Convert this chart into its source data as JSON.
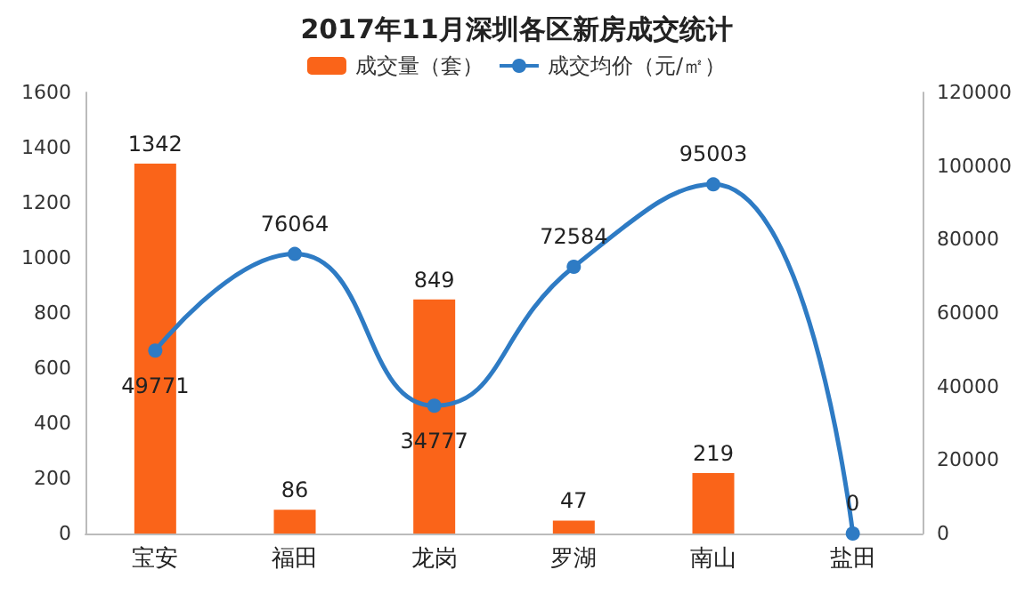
{
  "chart_data": {
    "type": "bar",
    "title": "2017年11月深圳各区新房成交统计",
    "categories": [
      "宝安",
      "福田",
      "龙岗",
      "罗湖",
      "南山",
      "盐田"
    ],
    "series": [
      {
        "name": "成交量（套）",
        "color": "#fa6419",
        "values": [
          1342,
          86,
          849,
          47,
          219,
          null
        ]
      },
      {
        "name": "成交均价（元/㎡）",
        "type": "line",
        "axis": "y2",
        "color": "#2e7bc4",
        "values": [
          49771,
          76064,
          34777,
          72584,
          95003,
          0
        ],
        "marker": "circle"
      }
    ],
    "ylim": [
      0,
      1600
    ],
    "yticks": [
      0,
      200,
      400,
      600,
      800,
      1000,
      1200,
      1400,
      1600
    ],
    "y2lim": [
      0,
      120000
    ],
    "y2ticks": [
      0,
      20000,
      40000,
      60000,
      80000,
      100000,
      120000
    ],
    "data_labels": true,
    "legend": "top",
    "grid": false
  }
}
